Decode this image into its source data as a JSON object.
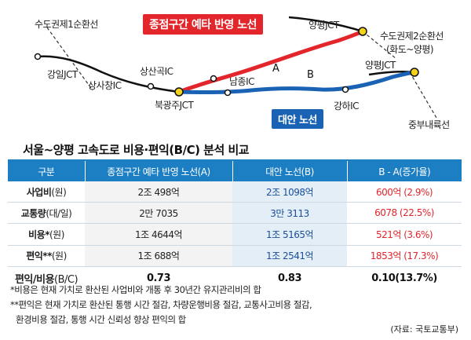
{
  "map": {
    "labels": {
      "ring1": "수도권제1순환선",
      "gangil": "강일JCT",
      "sangsachang": "상사창IC",
      "sangsangok": "상산곡IC",
      "bukgwangju": "북광주JCT",
      "namjong": "남종IC",
      "yangpyeong_top": "양평JCT",
      "ring2": "수도권제2순환선",
      "ring2_sub": "(화도~양평)",
      "yangpyeong_right": "양평JCT",
      "gangha": "강하IC",
      "jungbu": "중부내륙선"
    },
    "red_tag": "종점구간 예타 반영 노선",
    "blue_tag": "대안 노선",
    "route_a": "A",
    "route_b": "B",
    "colors": {
      "route_a": "#e2262c",
      "route_b": "#1a63b4",
      "node": "#f2d21b"
    }
  },
  "title": "서울~양평 고속도로 비용·편익(B/C) 분석 비교",
  "table": {
    "headers": [
      "구분",
      "종점구간 예타 반영 노선(A)",
      "대안 노선(B)",
      "B - A(증가율)"
    ],
    "rows": [
      {
        "label": "사업비",
        "unit": "(원)",
        "a": "2조 498억",
        "b": "2조 1098억",
        "d": "600억 (2.9%)"
      },
      {
        "label": "교통량",
        "unit": "(대/일)",
        "a": "2만 7035",
        "b": "3만 3113",
        "d": "6078 (22.5%)"
      },
      {
        "label": "비용*",
        "unit": "(원)",
        "a": "1조 4644억",
        "b": "1조 5165억",
        "d": "521억 (3.6%)"
      },
      {
        "label": "편익**",
        "unit": "(원)",
        "a": "1조 688억",
        "b": "1조 2541억",
        "d": "1853억 (17.3%)"
      },
      {
        "label": "편익/비용",
        "unit": "(B/C)",
        "a": "0.73",
        "b": "0.83",
        "d": "0.10(13.7%)"
      }
    ]
  },
  "notes": [
    "*비용은 현재 가치로 환산된 사업비와 개통 후 30년간 유지관리비의 합",
    "**편익은 현재 가치로 환산된 통행 시간 절감, 차량운행비용 절감, 교통사고비용 절감,",
    "환경비용 절감, 통행 시간 신뢰성 향상 편익의 합"
  ],
  "source": "(자료: 국토교통부)"
}
